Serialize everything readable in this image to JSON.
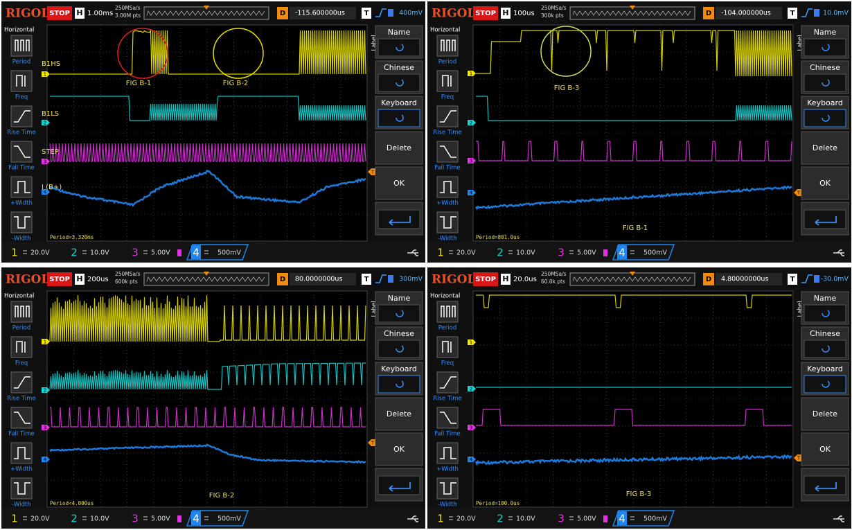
{
  "common": {
    "brand": "RIGOL",
    "status": "STOP",
    "h_label": "H",
    "d_label": "D",
    "t_label": "T",
    "left_title": "Horizontal",
    "left_items": [
      "Period",
      "Freq",
      "Rise Time",
      "Fall Time",
      "+Width",
      "-Width"
    ],
    "right_title": "Label",
    "right_items": [
      "Name",
      "Chinese",
      "Keyboard",
      "Delete",
      "OK"
    ],
    "channels": [
      "1",
      "2",
      "3",
      "4"
    ]
  },
  "panels": [
    {
      "timebase": "1.00ms",
      "sample_rate": "250MSa/s",
      "memory": "3.00M pts",
      "delay": "-115.600000us",
      "trigger_level": "400mV",
      "channel_labels": [
        "B1HS",
        "B1LS",
        "STEP",
        "I (B+)"
      ],
      "figure_labels": [
        "FIG B-1",
        "FIG B-2"
      ],
      "measurement": "Period=3.320ms",
      "scales": [
        "20.0V",
        "10.0V",
        "5.00V",
        "500mV"
      ]
    },
    {
      "timebase": "100us",
      "sample_rate": "250MSa/s",
      "memory": "300k pts",
      "delay": "-104.000000us",
      "trigger_level": "10.0mV",
      "figure_labels": [
        "FIG B-3",
        "FIG B-1"
      ],
      "measurement": "Period=801.0us",
      "scales": [
        "20.0V",
        "10.0V",
        "5.00V",
        "500mV"
      ]
    },
    {
      "timebase": "200us",
      "sample_rate": "250MSa/s",
      "memory": "600k pts",
      "delay": "80.0000000us",
      "trigger_level": "300mV",
      "figure_labels": [
        "FIG B-2"
      ],
      "measurement": "Period<4.000us",
      "scales": [
        "20.0V",
        "10.0V",
        "5.00V",
        "500mV"
      ]
    },
    {
      "timebase": "20.0us",
      "sample_rate": "250MSa/s",
      "memory": "60.0k pts",
      "delay": "4.80000000us",
      "trigger_level": "-30.0mV",
      "figure_labels": [
        "FIG B-3"
      ],
      "measurement": "Period=100.0us",
      "scales": [
        "20.0V",
        "10.0V",
        "5.00V",
        "500mV"
      ]
    }
  ]
}
